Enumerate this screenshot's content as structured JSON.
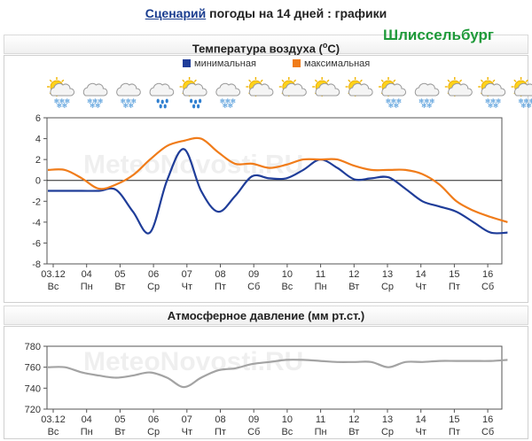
{
  "header": {
    "link_text": "Сценарий",
    "rest_text": " погоды на 14 дней : графики"
  },
  "city": "Шлиссельбург",
  "watermark": "MeteoNovosti.RU",
  "colors": {
    "min_series": "#1f3d99",
    "max_series": "#f07c1a",
    "pressure_series": "#a3a3a3",
    "city": "#1f9a3a"
  },
  "day_labels": {
    "dates": [
      "03.12",
      "04",
      "05",
      "06",
      "07",
      "08",
      "09",
      "10",
      "11",
      "12",
      "13",
      "14",
      "15",
      "16"
    ],
    "weekdays": [
      "Вс",
      "Пн",
      "Вт",
      "Ср",
      "Чт",
      "Пт",
      "Сб",
      "Вс",
      "Пн",
      "Вт",
      "Ср",
      "Чт",
      "Пт",
      "Сб"
    ]
  },
  "weather_icons": [
    "sun-cloud-snow-icon",
    "cloud-snow-icon",
    "cloud-snow-icon",
    "cloud-rain-icon",
    "sun-cloud-rain-icon",
    "cloud-snow-icon",
    "sun-cloud-icon",
    "sun-cloud-icon",
    "sun-cloud-icon",
    "sun-cloud-icon",
    "sun-cloud-snow-icon",
    "cloud-snow-icon",
    "sun-cloud-icon",
    "sun-cloud-snow-icon",
    "sun-cloud-snow-icon"
  ],
  "chart_data": [
    {
      "type": "line",
      "title": "Температура воздуха (°C)",
      "title_main": "Температура воздуха (",
      "title_unit": "o",
      "title_end": "C)",
      "legend_position": "top-center",
      "ylim": [
        -8,
        6
      ],
      "yticks": [
        -8,
        -6,
        -4,
        -2,
        0,
        2,
        4,
        6
      ],
      "grid": false,
      "x": [
        0,
        0.5,
        1,
        1.5,
        2,
        2.5,
        3,
        3.5,
        4,
        4.5,
        5,
        5.5,
        6,
        6.5,
        7,
        7.5,
        8,
        8.5,
        9,
        9.5,
        10,
        10.5,
        11,
        11.5,
        12,
        12.5,
        13,
        13.5
      ],
      "series": [
        {
          "name": "минимальная",
          "values": [
            -1,
            -1,
            -1,
            -1,
            -0.9,
            -3,
            -5,
            0,
            3,
            -1,
            -3,
            -1.5,
            0.4,
            0.2,
            0.2,
            1,
            2,
            1.2,
            0.1,
            0.2,
            0.3,
            -0.8,
            -2,
            -2.5,
            -3,
            -4,
            -5,
            -5
          ]
        },
        {
          "name": "максимальная",
          "values": [
            1,
            1,
            0.2,
            -0.8,
            -0.4,
            0.5,
            2,
            3.3,
            3.8,
            4,
            2.7,
            1.6,
            1.6,
            1.2,
            1.5,
            2,
            2,
            2,
            1.4,
            1,
            1,
            1,
            0.6,
            -0.4,
            -2,
            -2.9,
            -3.5,
            -4
          ]
        }
      ]
    },
    {
      "type": "line",
      "title": "Атмосферное давление (мм рт.ст.)",
      "ylim": [
        720,
        780
      ],
      "yticks": [
        720,
        740,
        760,
        780
      ],
      "grid": false,
      "x": [
        0,
        0.5,
        1,
        1.5,
        2,
        2.5,
        3,
        3.5,
        4,
        4.5,
        5,
        5.5,
        6,
        6.5,
        7,
        7.5,
        8,
        8.5,
        9,
        9.5,
        10,
        10.5,
        11,
        11.5,
        12,
        12.5,
        13,
        13.5
      ],
      "series": [
        {
          "name": "давление",
          "values": [
            760,
            760,
            755,
            752,
            750,
            752,
            755,
            750,
            741,
            750,
            757,
            759,
            763,
            765,
            767,
            767,
            766,
            765,
            765,
            765,
            760,
            765,
            765,
            766,
            766,
            766,
            766,
            767
          ]
        }
      ]
    }
  ]
}
